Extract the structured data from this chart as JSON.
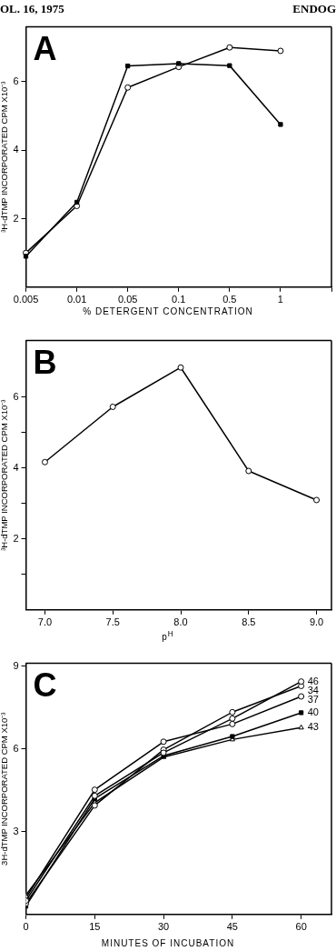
{
  "chart_data": [
    {
      "type": "line",
      "title": "A",
      "xlabel": "% DETERGENT CONCENTRATION",
      "ylabel": "³H-dTMP INCORPORATED CPM X10⁻³",
      "annotations": [
        "OL. 16, 1975",
        "ENDOG"
      ],
      "categories": [
        "0.005",
        "0.01",
        "0.05",
        "0.1",
        "0.5",
        "1",
        null
      ],
      "series": [
        {
          "color": "#000000",
          "marker": "square",
          "values": [
            0.9,
            2.48,
            6.46,
            6.53,
            6.47,
            4.75,
            null
          ]
        },
        {
          "color": "#000000",
          "marker": "circle",
          "values": [
            1.0,
            2.37,
            5.83,
            6.43,
            7.0,
            6.9,
            null
          ]
        }
      ],
      "ylim": [
        0,
        7.6
      ],
      "yticks": [
        2,
        4,
        6
      ],
      "grid": false,
      "legend": false,
      "line_style": "solid"
    },
    {
      "type": "line",
      "title": "B",
      "xlabel": "p$^{H}$",
      "ylabel": "³H-dTMP INCORPORATED CPM X10⁻³",
      "x": [
        7.0,
        7.5,
        8.0,
        8.5,
        9.0
      ],
      "series": [
        {
          "color": "#000000",
          "marker": "circle",
          "values": [
            4.17,
            5.73,
            6.84,
            3.92,
            3.1
          ]
        }
      ],
      "xlim": [
        6.86,
        9.11
      ],
      "xticks": [
        {
          "value": 7.0,
          "label": "7.0"
        },
        {
          "value": 7.5,
          "label": "7.5"
        },
        {
          "value": 8.0,
          "label": "8.0"
        },
        {
          "value": 8.5,
          "label": "8.5"
        },
        {
          "value": 9.0,
          "label": "9.0"
        }
      ],
      "ylim": [
        0,
        7.6
      ],
      "yticks": [
        {
          "value": 1,
          "label": null
        },
        2,
        {
          "value": 3,
          "label": null
        },
        4,
        {
          "value": 5,
          "label": null
        },
        6
      ],
      "grid": false,
      "legend": false,
      "line_style": "solid"
    },
    {
      "type": "line",
      "title": "C",
      "xlabel": "MINUTES OF INCUBATION",
      "ylabel": "3H-dTMP INCORPORATED CPM X10⁻³",
      "x": [
        0,
        15,
        30,
        45,
        60
      ],
      "series": [
        {
          "name": "46",
          "color": "#000000",
          "marker": "circle",
          "values": [
            0.5,
            4.3,
            5.86,
            7.1,
            8.44
          ]
        },
        {
          "name": "34",
          "color": "#000000",
          "marker": "circle",
          "values": [
            0.4,
            3.95,
            5.97,
            7.33,
            8.28
          ]
        },
        {
          "name": "37",
          "color": "#000000",
          "marker": "circle",
          "values": [
            0.6,
            4.52,
            6.26,
            6.9,
            7.9
          ]
        },
        {
          "name": "40",
          "color": "#000000",
          "marker": "square",
          "values": [
            0.3,
            4.2,
            5.75,
            6.45,
            7.31
          ]
        },
        {
          "name": "43",
          "color": "#000000",
          "marker": "triangle",
          "values": [
            0.7,
            4.05,
            5.7,
            6.34,
            6.77
          ]
        }
      ],
      "xlim": [
        0,
        66.6
      ],
      "xticks": [
        0,
        15,
        30,
        45,
        60
      ],
      "ylim": [
        0,
        9.1
      ],
      "yticks": [
        3,
        6,
        9
      ],
      "grid": false,
      "legend": false,
      "line_style": "solid"
    }
  ]
}
